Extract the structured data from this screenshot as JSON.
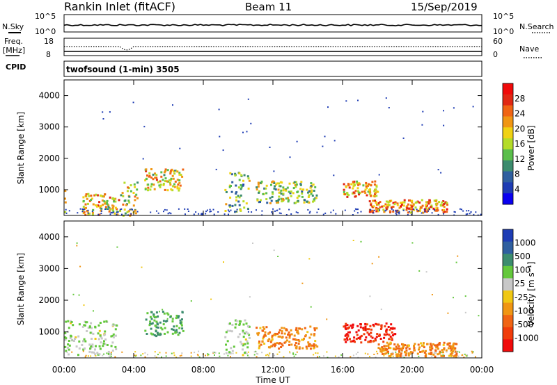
{
  "header": {
    "station": "Rankin Inlet (fitACF)",
    "beam": "Beam 11",
    "date": "15/Sep/2019"
  },
  "left_labels": {
    "nsky": "N.Sky",
    "freq_line1": "Freq.",
    "freq_line2": "[MHz]",
    "cpid": "CPID"
  },
  "right_labels": {
    "nsearch": "N.Search",
    "nave": "Nave"
  },
  "program": "twofsound (1-min) 3505",
  "chart_data": [
    {
      "type": "line",
      "panel": "noise",
      "y_left_ticks": [
        "10^5",
        "10^0"
      ],
      "y_right_ticks": [
        "10^5",
        "10^0"
      ],
      "series": [
        {
          "name": "N.Sky",
          "style": "solid"
        },
        {
          "name": "N.Search",
          "style": "dotted"
        }
      ]
    },
    {
      "type": "line",
      "panel": "frequency",
      "y_left_ticks": [
        "18",
        "8"
      ],
      "y_right_ticks": [
        "60",
        "0"
      ],
      "series": [
        {
          "name": "Freq.",
          "style": "solid"
        },
        {
          "name": "Nave",
          "style": "dotted"
        }
      ]
    },
    {
      "type": "heatmap",
      "panel": "power",
      "ylabel": "Slant Range [km]",
      "ylim": [
        180,
        4500
      ],
      "y_ticks": [
        "1000",
        "2000",
        "3000",
        "4000"
      ],
      "x_ticks": [
        "00:00",
        "04:00",
        "08:00",
        "12:00",
        "16:00",
        "20:00",
        "00:00"
      ],
      "colorbar_label": "Power [dB]",
      "colorbar_ticks": [
        "4",
        "8",
        "12",
        "16",
        "20",
        "24",
        "28"
      ],
      "colorbar_colors": [
        "#0a00f0",
        "#1e3cb4",
        "#2f5f9f",
        "#3c8c6e",
        "#5abe4b",
        "#b4dc28",
        "#f0d214",
        "#f09614",
        "#f06414",
        "#e12814",
        "#f00a0a"
      ],
      "echo_patches": [
        {
          "t0": 0.0,
          "t1": 0.1,
          "r0": 200,
          "r1": 1100,
          "v": 22
        },
        {
          "t0": 1.0,
          "t1": 3.2,
          "r0": 200,
          "r1": 900,
          "v": 18
        },
        {
          "t0": 3.2,
          "t1": 4.2,
          "r0": 200,
          "r1": 1300,
          "v": 16
        },
        {
          "t0": 4.6,
          "t1": 6.8,
          "r0": 1000,
          "r1": 1700,
          "v": 18
        },
        {
          "t0": 9.2,
          "t1": 10.6,
          "r0": 300,
          "r1": 1600,
          "v": 12
        },
        {
          "t0": 11.0,
          "t1": 14.5,
          "r0": 600,
          "r1": 1300,
          "v": 14
        },
        {
          "t0": 16.0,
          "t1": 18.0,
          "r0": 800,
          "r1": 1300,
          "v": 20
        },
        {
          "t0": 17.5,
          "t1": 22.0,
          "r0": 300,
          "r1": 700,
          "v": 22
        }
      ]
    },
    {
      "type": "heatmap",
      "panel": "velocity",
      "ylabel": "Slant Range [km]",
      "xlabel": "Time UT",
      "ylim": [
        180,
        4500
      ],
      "y_ticks": [
        "1000",
        "2000",
        "3000",
        "4000"
      ],
      "x_ticks": [
        "00:00",
        "04:00",
        "08:00",
        "12:00",
        "16:00",
        "20:00",
        "00:00"
      ],
      "colorbar_label": "Velocity [m s⁻¹]",
      "colorbar_ticks": [
        "1000",
        "500",
        "100",
        "25",
        "-25",
        "-100",
        "-500",
        "-1000"
      ],
      "colorbar_colors": [
        "#1e3cb4",
        "#2f5f9f",
        "#3c8c6e",
        "#64c83c",
        "#c8c8c8",
        "#f0c814",
        "#f09614",
        "#f06414",
        "#f03c0a",
        "#f00a0a"
      ],
      "echo_patches": [
        {
          "t0": 0.0,
          "t1": 3.0,
          "r0": 300,
          "r1": 1400,
          "v": 100
        },
        {
          "t0": 4.6,
          "t1": 6.8,
          "r0": 900,
          "r1": 1700,
          "v": 500
        },
        {
          "t0": 9.2,
          "t1": 10.6,
          "r0": 300,
          "r1": 1400,
          "v": 100
        },
        {
          "t0": 11.0,
          "t1": 14.5,
          "r0": 500,
          "r1": 1200,
          "v": -100
        },
        {
          "t0": 16.0,
          "t1": 19.0,
          "r0": 700,
          "r1": 1300,
          "v": -1000
        },
        {
          "t0": 18.0,
          "t1": 22.5,
          "r0": 250,
          "r1": 700,
          "v": -100
        }
      ]
    }
  ]
}
